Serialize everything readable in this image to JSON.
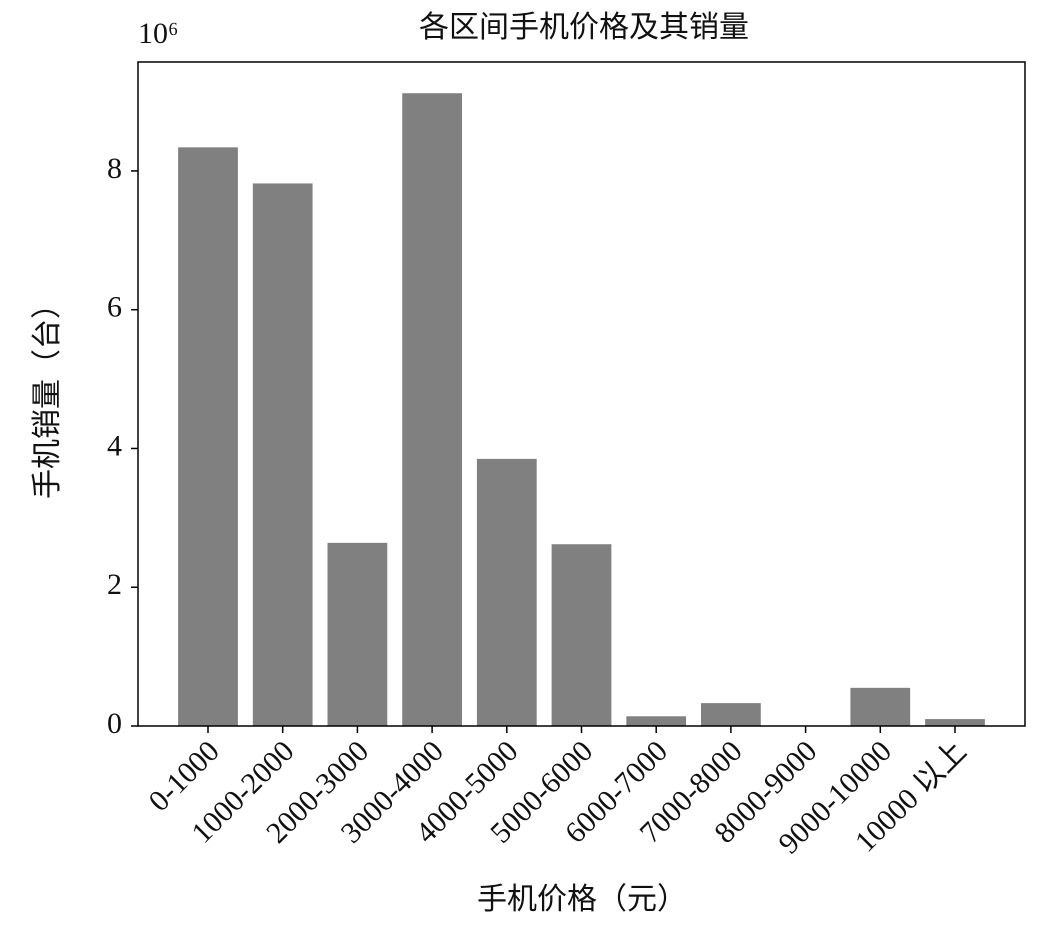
{
  "chart_data": {
    "type": "bar",
    "title": "各区间手机价格及其销量",
    "y_scale_label": "10⁶",
    "x_label": "手机价格（元）",
    "y_label": "手机销量（台）",
    "categories": [
      "0-1000",
      "1000-2000",
      "2000-3000",
      "3000-4000",
      "4000-5000",
      "5000-6000",
      "6000-7000",
      "7000-8000",
      "8000-9000",
      "9000-10000",
      "10000 以上"
    ],
    "values": [
      8.34,
      7.82,
      2.64,
      9.12,
      3.85,
      2.62,
      0.14,
      0.33,
      0,
      0.55,
      0.1
    ],
    "color": "#808080",
    "ylim": [
      0,
      9.57
    ],
    "yticks": [
      0,
      2,
      4,
      6,
      8
    ],
    "grid": false
  }
}
